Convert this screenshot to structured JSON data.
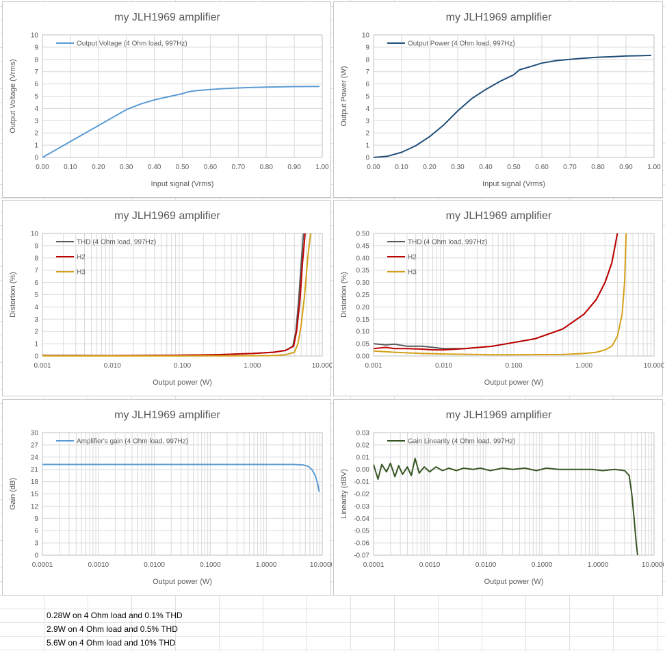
{
  "chart_data": [
    {
      "type": "line",
      "title": "my JLH1969 amplifier",
      "xlabel": "Input signal (Vrms)",
      "ylabel": "Output Voltage (Vrms)",
      "xscale": "linear",
      "xlim": [
        0,
        1.0
      ],
      "ylim": [
        0,
        10
      ],
      "xticks": [
        0,
        0.1,
        0.2,
        0.3,
        0.4,
        0.5,
        0.6,
        0.7,
        0.8,
        0.9,
        1.0
      ],
      "xtick_labels": [
        "0.00",
        "0.10",
        "0.20",
        "0.30",
        "0.40",
        "0.50",
        "0.60",
        "0.70",
        "0.80",
        "0.90",
        "1.00"
      ],
      "yticks": [
        0,
        1,
        2,
        3,
        4,
        5,
        6,
        7,
        8,
        9,
        10
      ],
      "ytick_labels": [
        "0",
        "1",
        "2",
        "3",
        "4",
        "5",
        "6",
        "7",
        "8",
        "9",
        "10"
      ],
      "grid": "major",
      "legend_position": "top-left",
      "series": [
        {
          "name": "Output Voltage (4 Ohm load, 997Hz)",
          "color": "#5b9bd5",
          "x": [
            0,
            0.05,
            0.1,
            0.15,
            0.2,
            0.25,
            0.3,
            0.35,
            0.4,
            0.45,
            0.5,
            0.52,
            0.55,
            0.6,
            0.65,
            0.7,
            0.75,
            0.8,
            0.85,
            0.9,
            0.95,
            0.99
          ],
          "y": [
            0,
            0.65,
            1.3,
            1.95,
            2.6,
            3.25,
            3.9,
            4.35,
            4.7,
            4.95,
            5.2,
            5.35,
            5.45,
            5.55,
            5.62,
            5.67,
            5.71,
            5.74,
            5.76,
            5.78,
            5.79,
            5.8
          ]
        }
      ]
    },
    {
      "type": "line",
      "title": "my JLH1969 amplifier",
      "xlabel": "Input signal (Vrms)",
      "ylabel": "Output Power (W)",
      "xscale": "linear",
      "xlim": [
        0,
        1.0
      ],
      "ylim": [
        0,
        10
      ],
      "xticks": [
        0,
        0.1,
        0.2,
        0.3,
        0.4,
        0.5,
        0.6,
        0.7,
        0.8,
        0.9,
        1.0
      ],
      "xtick_labels": [
        "0.00",
        "0.10",
        "0.20",
        "0.30",
        "0.40",
        "0.50",
        "0.60",
        "0.70",
        "0.80",
        "0.90",
        "1.00"
      ],
      "yticks": [
        0,
        1,
        2,
        3,
        4,
        5,
        6,
        7,
        8,
        9,
        10
      ],
      "ytick_labels": [
        "0",
        "1",
        "2",
        "3",
        "4",
        "5",
        "6",
        "7",
        "8",
        "9",
        "10"
      ],
      "grid": "major",
      "legend_position": "top-left",
      "series": [
        {
          "name": "Output Power (4 Ohm load, 997Hz)",
          "color": "#1f4e79",
          "x": [
            0,
            0.05,
            0.1,
            0.15,
            0.2,
            0.25,
            0.3,
            0.35,
            0.4,
            0.45,
            0.5,
            0.52,
            0.55,
            0.6,
            0.65,
            0.7,
            0.75,
            0.8,
            0.85,
            0.9,
            0.95,
            0.99
          ],
          "y": [
            0,
            0.1,
            0.42,
            0.95,
            1.7,
            2.65,
            3.8,
            4.8,
            5.55,
            6.2,
            6.75,
            7.15,
            7.35,
            7.7,
            7.9,
            8.0,
            8.1,
            8.18,
            8.22,
            8.28,
            8.3,
            8.33
          ]
        }
      ]
    },
    {
      "type": "line",
      "title": "my JLH1969 amplifier",
      "xlabel": "Output power (W)",
      "ylabel": "Distortion (%)",
      "xscale": "log",
      "xlim": [
        0.001,
        10
      ],
      "ylim": [
        0,
        10
      ],
      "xticks": [
        0.001,
        0.01,
        0.1,
        1,
        10
      ],
      "xtick_labels": [
        "0.001",
        "0.010",
        "0.100",
        "1.000",
        "10.000"
      ],
      "yticks": [
        0,
        1,
        2,
        3,
        4,
        5,
        6,
        7,
        8,
        9,
        10
      ],
      "ytick_labels": [
        "0",
        "1",
        "2",
        "3",
        "4",
        "5",
        "6",
        "7",
        "8",
        "9",
        "10"
      ],
      "grid": "major-minor",
      "legend_position": "top-left",
      "series": [
        {
          "name": "THD (4 Ohm load, 997Hz)",
          "color": "#595959",
          "x": [
            0.001,
            0.003,
            0.01,
            0.03,
            0.1,
            0.3,
            1,
            2,
            3,
            3.8,
            4.2,
            4.6,
            5.0,
            5.4
          ],
          "y": [
            0.05,
            0.04,
            0.03,
            0.04,
            0.06,
            0.1,
            0.2,
            0.3,
            0.45,
            0.8,
            2.0,
            4.5,
            7.5,
            10
          ]
        },
        {
          "name": "H2",
          "color": "#c00000",
          "x": [
            0.001,
            0.003,
            0.01,
            0.03,
            0.1,
            0.3,
            1,
            2,
            3,
            3.9,
            4.3,
            4.8,
            5.2,
            5.7
          ],
          "y": [
            0.03,
            0.03,
            0.03,
            0.04,
            0.06,
            0.1,
            0.2,
            0.3,
            0.45,
            0.8,
            2.0,
            4.5,
            7.5,
            10
          ]
        },
        {
          "name": "H3",
          "color": "#d4a017",
          "x": [
            0.001,
            0.01,
            0.1,
            1,
            2,
            3,
            4,
            4.5,
            5,
            5.6,
            6.2,
            6.8
          ],
          "y": [
            0.01,
            0.005,
            0.005,
            0.01,
            0.03,
            0.1,
            0.3,
            1.0,
            2.5,
            5.0,
            8.0,
            10
          ]
        }
      ]
    },
    {
      "type": "line",
      "title": "my JLH1969 amplifier",
      "xlabel": "Output power (W)",
      "ylabel": "Distortion (%)",
      "xscale": "log",
      "xlim": [
        0.001,
        10
      ],
      "ylim": [
        0,
        0.5
      ],
      "xticks": [
        0.001,
        0.01,
        0.1,
        1,
        10
      ],
      "xtick_labels": [
        "0.001",
        "0.010",
        "0.100",
        "1.000",
        "10.000"
      ],
      "yticks": [
        0,
        0.05,
        0.1,
        0.15,
        0.2,
        0.25,
        0.3,
        0.35,
        0.4,
        0.45,
        0.5
      ],
      "ytick_labels": [
        "0.00",
        "0.05",
        "0.10",
        "0.15",
        "0.20",
        "0.25",
        "0.30",
        "0.35",
        "0.40",
        "0.45",
        "0.50"
      ],
      "grid": "major-minor",
      "legend_position": "top-left",
      "series": [
        {
          "name": "THD (4 Ohm load, 997Hz)",
          "color": "#595959",
          "x": [
            0.001,
            0.0015,
            0.002,
            0.003,
            0.005,
            0.007,
            0.01,
            0.02,
            0.05,
            0.1,
            0.2,
            0.5,
            1,
            1.5,
            2,
            2.5,
            3
          ],
          "y": [
            0.05,
            0.045,
            0.048,
            0.04,
            0.04,
            0.035,
            0.03,
            0.03,
            0.04,
            0.055,
            0.07,
            0.11,
            0.17,
            0.23,
            0.3,
            0.38,
            0.5
          ]
        },
        {
          "name": "H2",
          "color": "#c00000",
          "x": [
            0.001,
            0.0015,
            0.002,
            0.003,
            0.005,
            0.007,
            0.01,
            0.02,
            0.05,
            0.1,
            0.2,
            0.5,
            1,
            1.5,
            2,
            2.5,
            3
          ],
          "y": [
            0.03,
            0.035,
            0.03,
            0.03,
            0.028,
            0.025,
            0.025,
            0.03,
            0.04,
            0.055,
            0.07,
            0.11,
            0.17,
            0.23,
            0.3,
            0.38,
            0.5
          ]
        },
        {
          "name": "H3",
          "color": "#d4a017",
          "x": [
            0.001,
            0.002,
            0.005,
            0.01,
            0.05,
            0.1,
            0.5,
            1,
            1.5,
            2,
            2.5,
            3,
            3.5,
            3.8,
            4.0
          ],
          "y": [
            0.02,
            0.015,
            0.01,
            0.008,
            0.005,
            0.005,
            0.006,
            0.01,
            0.015,
            0.025,
            0.04,
            0.08,
            0.17,
            0.3,
            0.5
          ]
        }
      ]
    },
    {
      "type": "line",
      "title": "my JLH1969 amplifier",
      "xlabel": "Output power (W)",
      "ylabel": "Gain (dB)",
      "xscale": "log",
      "xlim": [
        0.0001,
        10
      ],
      "ylim": [
        0,
        30
      ],
      "xticks": [
        0.0001,
        0.001,
        0.01,
        0.1,
        1,
        10
      ],
      "xtick_labels": [
        "0.0001",
        "0.0010",
        "0.0100",
        "0.1000",
        "1.0000",
        "10.0000"
      ],
      "yticks": [
        0,
        3,
        6,
        9,
        12,
        15,
        18,
        21,
        24,
        27,
        30
      ],
      "ytick_labels": [
        "0",
        "3",
        "6",
        "9",
        "12",
        "15",
        "18",
        "21",
        "24",
        "27",
        "30"
      ],
      "grid": "major-minor",
      "legend_position": "top-left",
      "series": [
        {
          "name": "Amplifier's gain (4 Ohm load, 997Hz)",
          "color": "#5b9bd5",
          "x": [
            0.0001,
            0.001,
            0.01,
            0.1,
            1,
            3,
            4.5,
            5.5,
            6.5,
            7.5,
            8.3,
            8.8
          ],
          "y": [
            22.2,
            22.2,
            22.2,
            22.2,
            22.2,
            22.2,
            22.1,
            21.8,
            21.0,
            19.5,
            17.5,
            15.5
          ]
        }
      ]
    },
    {
      "type": "line",
      "title": "my JLH1969 amplifier",
      "xlabel": "Output power (W)",
      "ylabel": "Linearity (dBV)",
      "xscale": "log",
      "xlim": [
        0.0001,
        10
      ],
      "ylim": [
        -0.07,
        0.03
      ],
      "xticks": [
        0.0001,
        0.001,
        0.01,
        0.1,
        1,
        10
      ],
      "xtick_labels": [
        "0.0001",
        "0.0010",
        "0.0100",
        "0.1000",
        "1.0000",
        "10.0000"
      ],
      "yticks": [
        -0.07,
        -0.06,
        -0.05,
        -0.04,
        -0.03,
        -0.02,
        -0.01,
        0,
        0.01,
        0.02,
        0.03
      ],
      "ytick_labels": [
        "-0.07",
        "-0.06",
        "-0.05",
        "-0.04",
        "-0.03",
        "-0.02",
        "-0.01",
        "0.00",
        "0.01",
        "0.02",
        "0.03"
      ],
      "grid": "major-minor",
      "legend_position": "top-left",
      "series": [
        {
          "name": "Gain Linearity (4 Ohm load, 997Hz)",
          "color": "#375623",
          "x": [
            0.0001,
            0.00012,
            0.00014,
            0.00017,
            0.0002,
            0.00024,
            0.00028,
            0.00033,
            0.0004,
            0.00047,
            0.00055,
            0.00065,
            0.0008,
            0.001,
            0.0013,
            0.0017,
            0.0022,
            0.003,
            0.004,
            0.006,
            0.008,
            0.012,
            0.02,
            0.03,
            0.05,
            0.08,
            0.12,
            0.2,
            0.3,
            0.5,
            0.8,
            1.2,
            2,
            3,
            3.6,
            4.0,
            4.4,
            4.8,
            5.1
          ],
          "y": [
            0.004,
            -0.008,
            0.004,
            -0.002,
            0.005,
            -0.006,
            0.003,
            -0.004,
            0.002,
            -0.005,
            0.009,
            -0.003,
            0.002,
            -0.002,
            0.002,
            -0.001,
            0.001,
            -0.001,
            0.001,
            0,
            0.001,
            -0.001,
            0.001,
            0,
            0.001,
            -0.001,
            0.001,
            0,
            0,
            0,
            0,
            -0.001,
            0,
            -0.001,
            -0.005,
            -0.02,
            -0.04,
            -0.06,
            -0.07
          ]
        }
      ]
    }
  ],
  "notes": [
    "0.28W on 4 Ohm load and 0.1% THD",
    "2.9W on 4 Ohm load and 0.5% THD",
    "5.6W on 4 Ohm load and 10% THD"
  ]
}
